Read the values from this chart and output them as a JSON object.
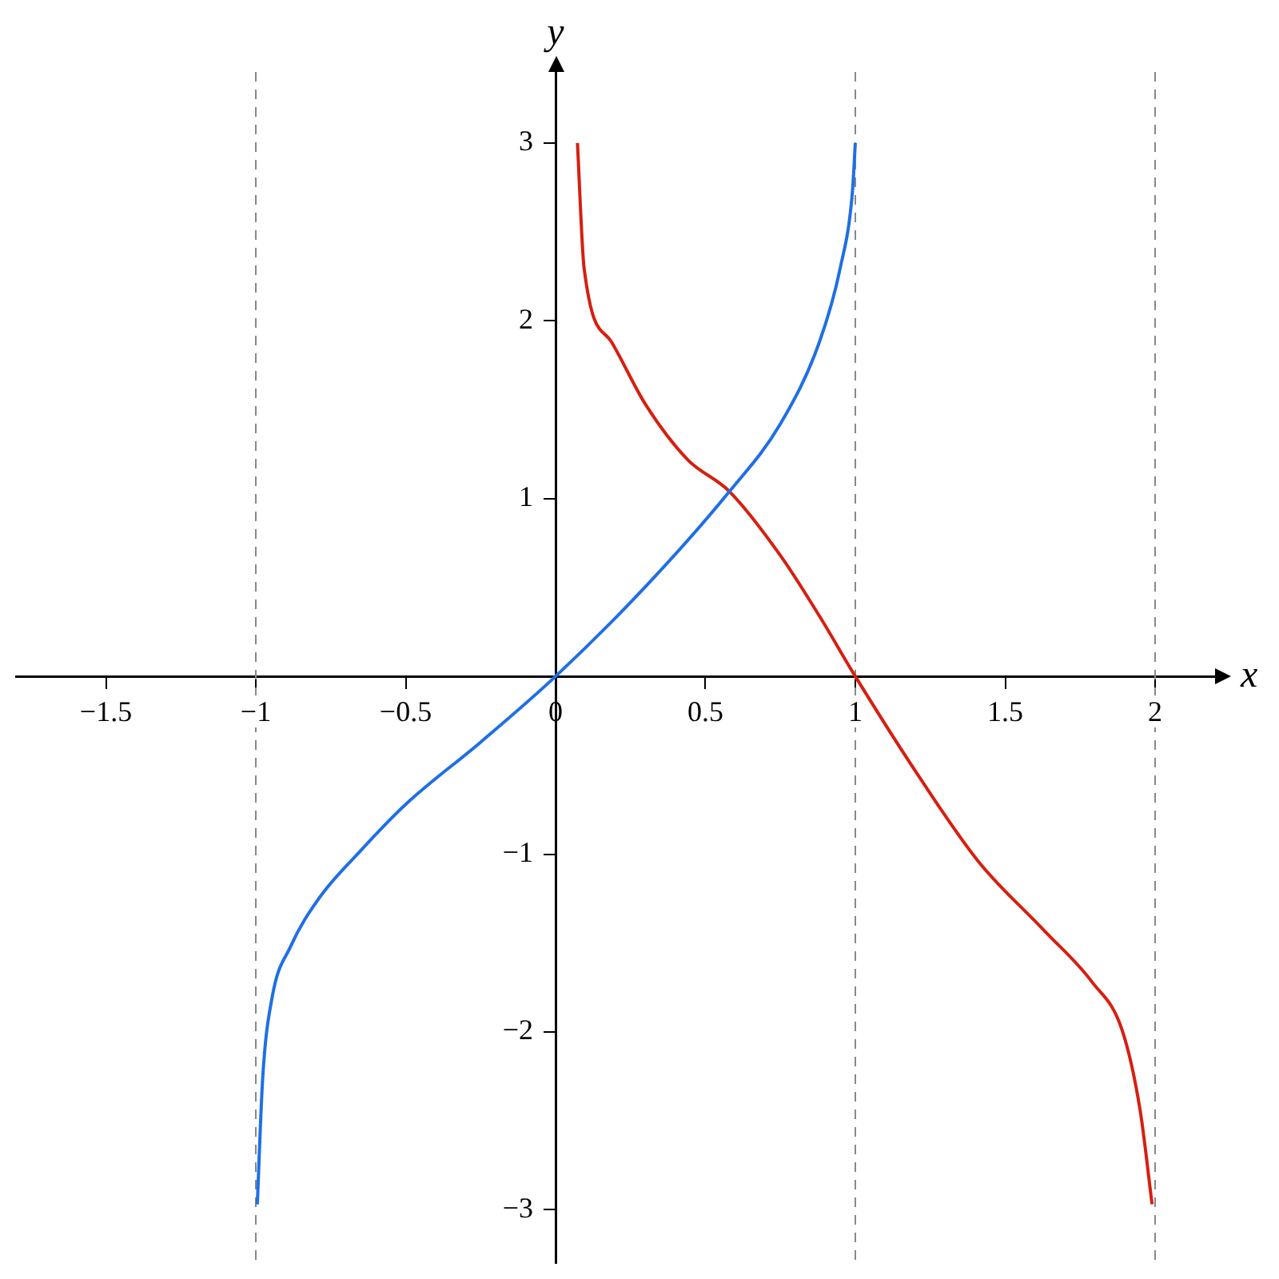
{
  "chart_data": {
    "type": "line",
    "xlabel": "x",
    "ylabel": "y",
    "xlim": [
      -1.8,
      2.2
    ],
    "ylim": [
      -3.3,
      3.4
    ],
    "xticks": [
      {
        "value": -1.5,
        "label": "−1.5"
      },
      {
        "value": -1,
        "label": "−1"
      },
      {
        "value": -0.5,
        "label": "−0.5"
      },
      0,
      0.5,
      1,
      1.5,
      2
    ],
    "yticks": [
      {
        "value": -3,
        "label": "−3"
      },
      {
        "value": -2,
        "label": "−2"
      },
      {
        "value": -1,
        "label": "−1"
      },
      1,
      2,
      3
    ],
    "series": [
      {
        "color": "#1f6fe5",
        "x": [
          -0.995,
          -0.977,
          -0.946,
          -0.884,
          -0.79,
          -0.65,
          -0.5,
          -0.25,
          0,
          0.303,
          0.58,
          0.75,
          0.88,
          0.95,
          0.99,
          1.0
        ],
        "values": [
          -2.97,
          -2.26,
          -1.81,
          -1.52,
          -1.25,
          -0.98,
          -0.72,
          -0.37,
          0,
          0.51,
          1.04,
          1.42,
          1.88,
          2.3,
          2.72,
          3
        ]
      },
      {
        "color": "#d61f10",
        "x": [
          0.073,
          0.095,
          0.187,
          0.3,
          0.44,
          0.58,
          0.75,
          0.88,
          1,
          1.215,
          1.41,
          1.63,
          1.79,
          1.89,
          1.95,
          1.99
        ],
        "values": [
          3,
          2.3,
          1.88,
          1.53,
          1.22,
          1.04,
          0.68,
          0.34,
          0,
          -0.57,
          -1.04,
          -1.43,
          -1.72,
          -1.99,
          -2.44,
          -2.97
        ]
      }
    ],
    "marker": "none",
    "ref_lines": [
      {
        "axis": "x",
        "value": -1,
        "color": "#888888",
        "line_style": "dashed"
      },
      {
        "axis": "x",
        "value": 1,
        "color": "#888888",
        "line_style": "dashed"
      },
      {
        "axis": "x",
        "value": 2,
        "color": "#888888",
        "line_style": "dashed"
      }
    ]
  }
}
